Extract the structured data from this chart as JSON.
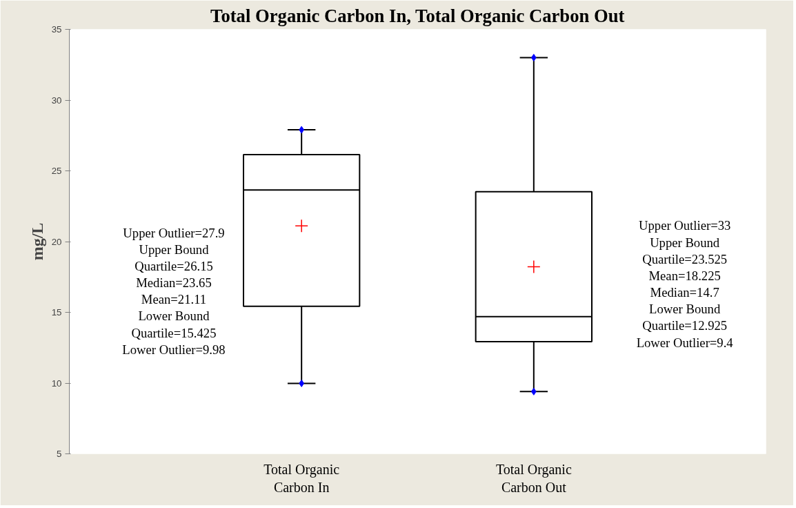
{
  "chart_data": {
    "type": "box",
    "title": "Total Organic Carbon In, Total Organic Carbon Out",
    "ylabel": "mg/L",
    "categories": [
      "Total Organic Carbon In",
      "Total Organic Carbon Out"
    ],
    "boxes": [
      {
        "low": 9.98,
        "q1": 15.425,
        "median": 23.65,
        "q3": 26.15,
        "high": 27.9,
        "mean": 21.11,
        "outliers": [
          27.9,
          9.98
        ]
      },
      {
        "low": 9.4,
        "q1": 12.925,
        "median": 14.7,
        "q3": 23.525,
        "high": 33,
        "mean": 18.225,
        "outliers": [
          33,
          9.4
        ]
      }
    ],
    "ylim": [
      5,
      35
    ],
    "yticks": [
      5,
      10,
      15,
      20,
      25,
      30,
      35
    ],
    "grid": false,
    "annotations": [
      "Upper Outlier=27.9\nUpper Bound\nQuartile=26.15\nMedian=23.65\nMean=21.11\nLower Bound\nQuartile=15.425\nLower Outlier=9.98",
      "Upper Outlier=33\nUpper Bound\nQuartile=23.525\nMean=18.225\nMedian=14.7\nLower Bound\nQuartile=12.925\nLower Outlier=9.4"
    ]
  }
}
